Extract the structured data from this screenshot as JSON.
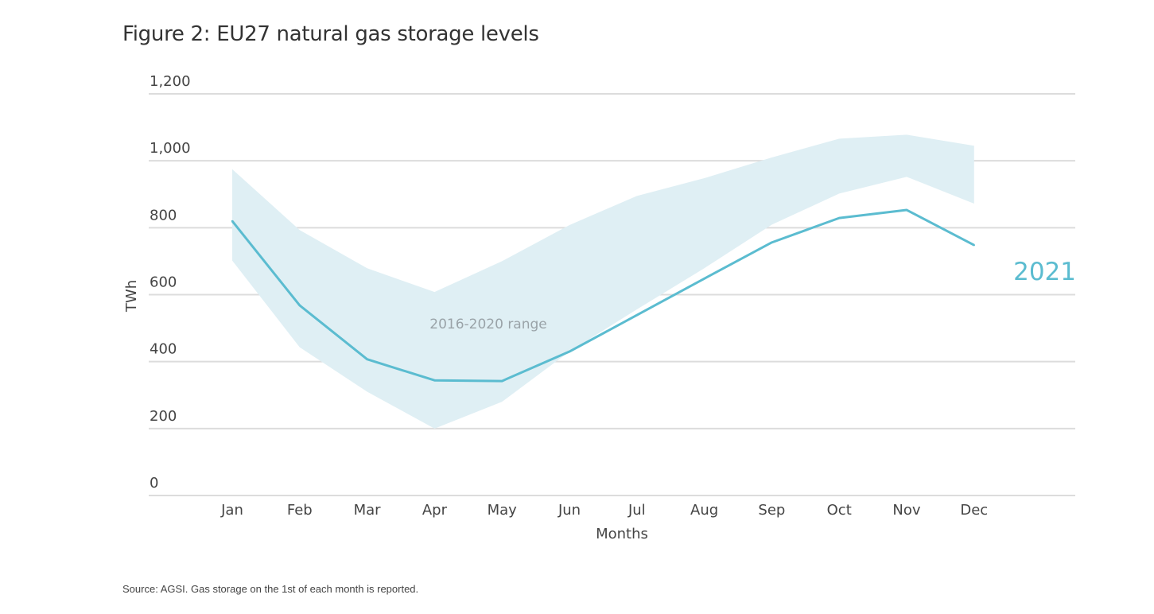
{
  "title": "Figure 2: EU27 natural gas storage levels",
  "source": "Source: AGSI. Gas storage on the 1st of each month is reported.",
  "colors": {
    "line": "#5bbcd0",
    "band": "#dfeff4",
    "grid": "#dcdcdc",
    "label_2021": "#5bbcd0",
    "band_label": "#9aa3a8"
  },
  "chart_data": {
    "type": "line",
    "title": "Figure 2: EU27 natural gas storage levels",
    "xlabel": "Months",
    "ylabel": "TWh",
    "ylim": [
      0,
      1200
    ],
    "yticks": [
      0,
      200,
      400,
      600,
      800,
      1000,
      1200
    ],
    "ytick_labels": [
      "0",
      "200",
      "400",
      "600",
      "800",
      "1,000",
      "1,200"
    ],
    "grid": true,
    "categories": [
      "Jan",
      "Feb",
      "Mar",
      "Apr",
      "May",
      "Jun",
      "Jul",
      "Aug",
      "Sep",
      "Oct",
      "Nov",
      "Dec"
    ],
    "series": [
      {
        "name": "2021",
        "label": "2021",
        "values": [
          820,
          568,
          407,
          344,
          342,
          430,
          539,
          648,
          756,
          829,
          853,
          748
        ]
      }
    ],
    "range_band": {
      "name": "2016-2020 range",
      "label": "2016-2020 range",
      "upper": [
        975,
        793,
        679,
        608,
        700,
        808,
        895,
        948,
        1010,
        1066,
        1078,
        1045
      ],
      "lower": [
        702,
        443,
        310,
        200,
        280,
        430,
        556,
        679,
        809,
        902,
        952,
        872
      ]
    },
    "legend": "direct-labels"
  }
}
